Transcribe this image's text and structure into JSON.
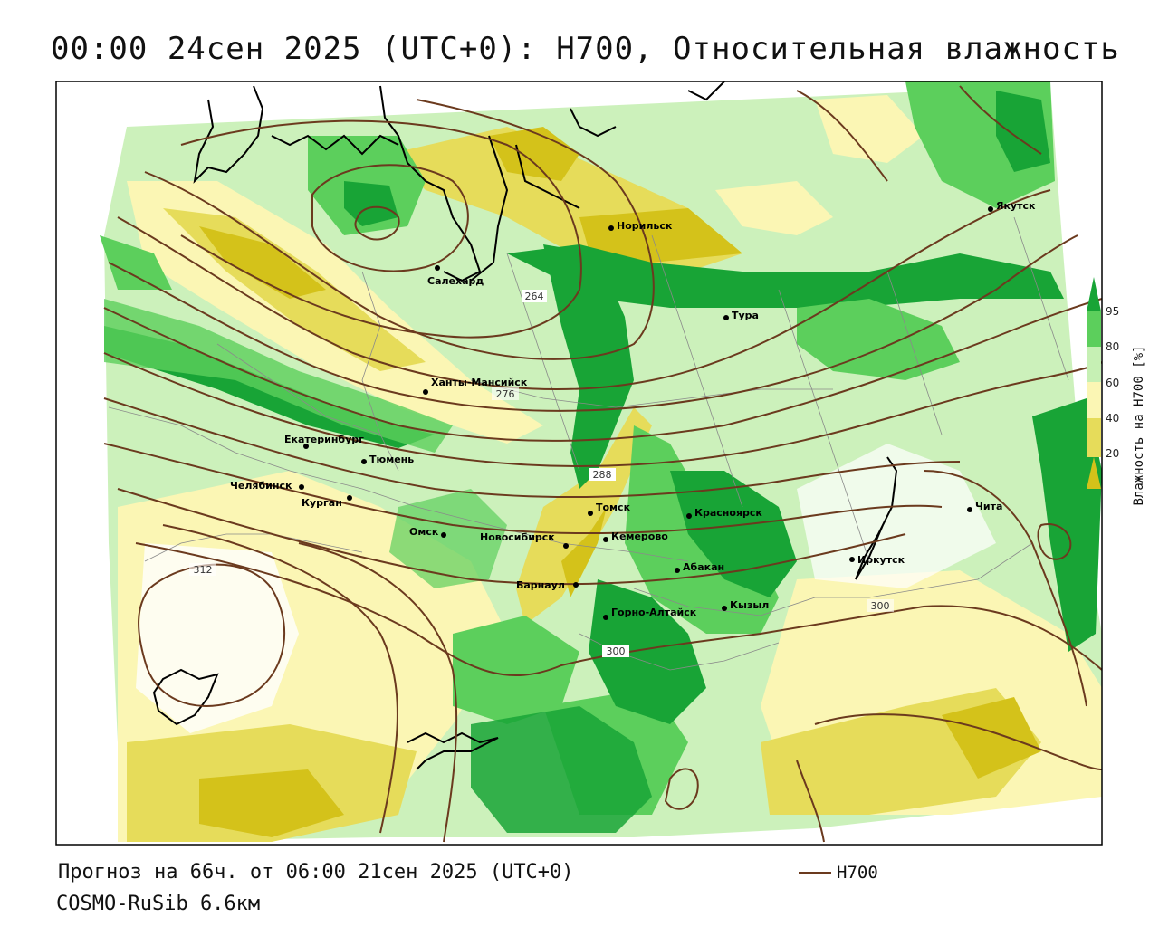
{
  "title": "00:00 24сен 2025 (UTC+0): H700, Относительная влажность",
  "forecast_line": "Прогноз на 66ч. от 06:00 21сен 2025 (UTC+0)",
  "model_line": "COSMO-RuSib 6.6км",
  "line_legend_label": "H700",
  "colorbar": {
    "label": "Влажность на H700 [%]",
    "ticks": [
      "20",
      "40",
      "60",
      "80",
      "95"
    ],
    "colors": {
      "below_20": "#d4c21a",
      "20_40": "#e6dc5a",
      "40_60": "#fbf6b4",
      "60_80": "#c6f0b4",
      "80_95": "#5ccf5c",
      "above_95": "#18a436"
    }
  },
  "contour_color": "#6b3a1e",
  "contour_labels": [
    "264",
    "276",
    "288",
    "300",
    "300",
    "312"
  ],
  "cities": [
    {
      "name": "Норильск"
    },
    {
      "name": "Якутск"
    },
    {
      "name": "Салехард"
    },
    {
      "name": "Тура"
    },
    {
      "name": "Ханты-Мансийск"
    },
    {
      "name": "Екатеринбург"
    },
    {
      "name": "Тюмень"
    },
    {
      "name": "Челябинск"
    },
    {
      "name": "Курган"
    },
    {
      "name": "Омск"
    },
    {
      "name": "Новосибирск"
    },
    {
      "name": "Томск"
    },
    {
      "name": "Кемерово"
    },
    {
      "name": "Красноярск"
    },
    {
      "name": "Барнаул"
    },
    {
      "name": "Абакан"
    },
    {
      "name": "Горно-Алтайск"
    },
    {
      "name": "Кызыл"
    },
    {
      "name": "Иркутск"
    },
    {
      "name": "Чита"
    }
  ]
}
